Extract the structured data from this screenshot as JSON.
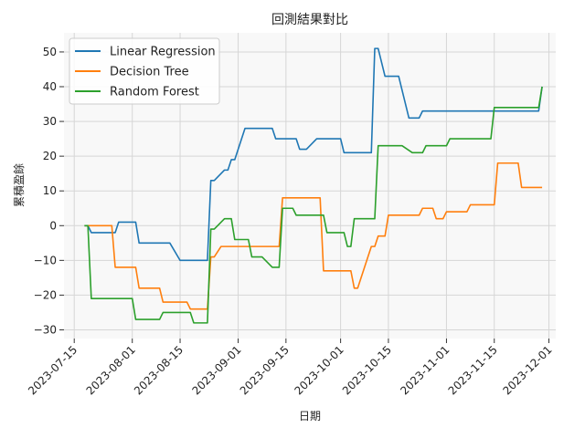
{
  "chart_data": {
    "type": "line",
    "title": "回測結果對比",
    "xlabel": "日期",
    "ylabel": "累積盈餘",
    "x_type": "date",
    "xlim": [
      "2023-07-12",
      "2023-12-03"
    ],
    "ylim": [
      -32.5,
      55.5
    ],
    "x_ticks": [
      "2023-07-15",
      "2023-08-01",
      "2023-08-15",
      "2023-09-01",
      "2023-09-15",
      "2023-10-01",
      "2023-10-15",
      "2023-11-01",
      "2023-11-15",
      "2023-12-01"
    ],
    "y_ticks": [
      -30,
      -20,
      -10,
      0,
      10,
      20,
      30,
      40,
      50
    ],
    "grid": true,
    "legend_position": "top-left",
    "series": [
      {
        "name": "Linear Regression",
        "color": "#1f77b4",
        "points": [
          [
            "2023-07-18",
            0
          ],
          [
            "2023-07-19",
            0
          ],
          [
            "2023-07-20",
            -2
          ],
          [
            "2023-07-21",
            -2
          ],
          [
            "2023-07-27",
            -2
          ],
          [
            "2023-07-28",
            1
          ],
          [
            "2023-08-02",
            1
          ],
          [
            "2023-08-03",
            -5
          ],
          [
            "2023-08-12",
            -5
          ],
          [
            "2023-08-15",
            -10
          ],
          [
            "2023-08-23",
            -10
          ],
          [
            "2023-08-24",
            13
          ],
          [
            "2023-08-25",
            13
          ],
          [
            "2023-08-28",
            16
          ],
          [
            "2023-08-29",
            16
          ],
          [
            "2023-08-30",
            19
          ],
          [
            "2023-08-31",
            19
          ],
          [
            "2023-09-03",
            28
          ],
          [
            "2023-09-11",
            28
          ],
          [
            "2023-09-12",
            25
          ],
          [
            "2023-09-18",
            25
          ],
          [
            "2023-09-19",
            22
          ],
          [
            "2023-09-21",
            22
          ],
          [
            "2023-09-24",
            25
          ],
          [
            "2023-10-01",
            25
          ],
          [
            "2023-10-02",
            21
          ],
          [
            "2023-10-10",
            21
          ],
          [
            "2023-10-11",
            51
          ],
          [
            "2023-10-12",
            51
          ],
          [
            "2023-10-14",
            43
          ],
          [
            "2023-10-18",
            43
          ],
          [
            "2023-10-21",
            31
          ],
          [
            "2023-10-24",
            31
          ],
          [
            "2023-10-25",
            33
          ],
          [
            "2023-11-15",
            33
          ],
          [
            "2023-11-16",
            33
          ],
          [
            "2023-11-28",
            33
          ],
          [
            "2023-11-29",
            40
          ]
        ]
      },
      {
        "name": "Decision Tree",
        "color": "#ff7f0e",
        "points": [
          [
            "2023-07-18",
            0
          ],
          [
            "2023-07-26",
            0
          ],
          [
            "2023-07-27",
            -12
          ],
          [
            "2023-08-02",
            -12
          ],
          [
            "2023-08-03",
            -18
          ],
          [
            "2023-08-09",
            -18
          ],
          [
            "2023-08-10",
            -22
          ],
          [
            "2023-08-17",
            -22
          ],
          [
            "2023-08-18",
            -24
          ],
          [
            "2023-08-23",
            -24
          ],
          [
            "2023-08-24",
            -9
          ],
          [
            "2023-08-25",
            -9
          ],
          [
            "2023-08-27",
            -6
          ],
          [
            "2023-09-13",
            -6
          ],
          [
            "2023-09-14",
            8
          ],
          [
            "2023-09-25",
            8
          ],
          [
            "2023-09-26",
            -13
          ],
          [
            "2023-10-04",
            -13
          ],
          [
            "2023-10-05",
            -18
          ],
          [
            "2023-10-06",
            -18
          ],
          [
            "2023-10-10",
            -6
          ],
          [
            "2023-10-11",
            -6
          ],
          [
            "2023-10-12",
            -3
          ],
          [
            "2023-10-14",
            -3
          ],
          [
            "2023-10-15",
            3
          ],
          [
            "2023-10-24",
            3
          ],
          [
            "2023-10-25",
            5
          ],
          [
            "2023-10-28",
            5
          ],
          [
            "2023-10-29",
            2
          ],
          [
            "2023-10-31",
            2
          ],
          [
            "2023-11-01",
            4
          ],
          [
            "2023-11-07",
            4
          ],
          [
            "2023-11-08",
            6
          ],
          [
            "2023-11-15",
            6
          ],
          [
            "2023-11-16",
            18
          ],
          [
            "2023-11-22",
            18
          ],
          [
            "2023-11-23",
            11
          ],
          [
            "2023-11-29",
            11
          ]
        ]
      },
      {
        "name": "Random Forest",
        "color": "#2ca02c",
        "points": [
          [
            "2023-07-18",
            0
          ],
          [
            "2023-07-19",
            0
          ],
          [
            "2023-07-20",
            -21
          ],
          [
            "2023-08-01",
            -21
          ],
          [
            "2023-08-02",
            -27
          ],
          [
            "2023-08-09",
            -27
          ],
          [
            "2023-08-10",
            -25
          ],
          [
            "2023-08-18",
            -25
          ],
          [
            "2023-08-19",
            -28
          ],
          [
            "2023-08-23",
            -28
          ],
          [
            "2023-08-24",
            -1
          ],
          [
            "2023-08-25",
            -1
          ],
          [
            "2023-08-28",
            2
          ],
          [
            "2023-08-30",
            2
          ],
          [
            "2023-08-31",
            -4
          ],
          [
            "2023-09-04",
            -4
          ],
          [
            "2023-09-05",
            -9
          ],
          [
            "2023-09-08",
            -9
          ],
          [
            "2023-09-11",
            -12
          ],
          [
            "2023-09-13",
            -12
          ],
          [
            "2023-09-14",
            5
          ],
          [
            "2023-09-17",
            5
          ],
          [
            "2023-09-18",
            3
          ],
          [
            "2023-09-26",
            3
          ],
          [
            "2023-09-27",
            -2
          ],
          [
            "2023-10-02",
            -2
          ],
          [
            "2023-10-03",
            -6
          ],
          [
            "2023-10-04",
            -6
          ],
          [
            "2023-10-05",
            2
          ],
          [
            "2023-10-11",
            2
          ],
          [
            "2023-10-12",
            23
          ],
          [
            "2023-10-19",
            23
          ],
          [
            "2023-10-22",
            21
          ],
          [
            "2023-10-25",
            21
          ],
          [
            "2023-10-26",
            23
          ],
          [
            "2023-11-01",
            23
          ],
          [
            "2023-11-02",
            25
          ],
          [
            "2023-11-14",
            25
          ],
          [
            "2023-11-15",
            34
          ],
          [
            "2023-11-28",
            34
          ],
          [
            "2023-11-29",
            40
          ]
        ]
      }
    ]
  }
}
